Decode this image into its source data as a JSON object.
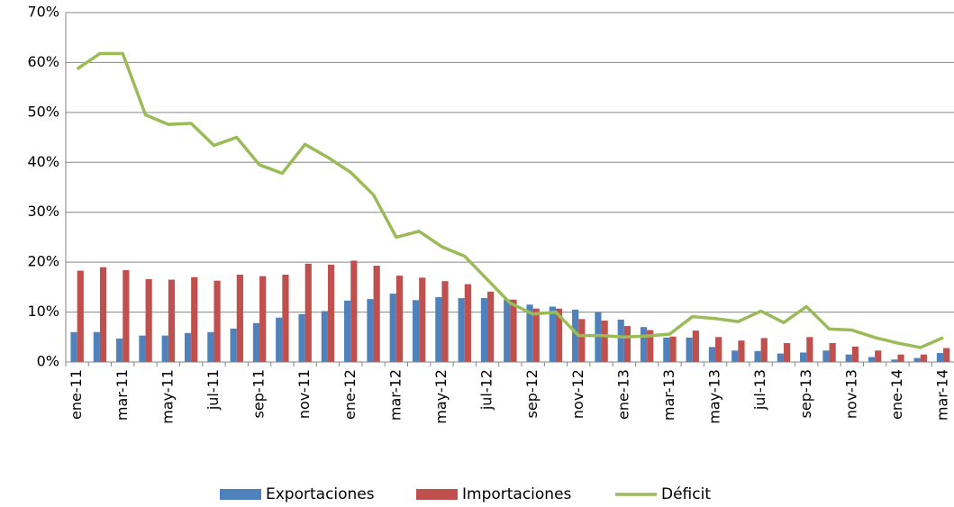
{
  "chart_data": {
    "type": "bar",
    "categories": [
      "ene-11",
      null,
      "mar-11",
      null,
      "may-11",
      null,
      "jul-11",
      null,
      "sep-11",
      null,
      "nov-11",
      null,
      "ene-12",
      null,
      "mar-12",
      null,
      "may-12",
      null,
      "jul-12",
      null,
      "sep-12",
      null,
      "nov-12",
      null,
      "ene-13",
      null,
      "mar-13",
      null,
      "may-13",
      null,
      "jul-13",
      null,
      "sep-13",
      null,
      "nov-13",
      null,
      "ene-14",
      null,
      "mar-14"
    ],
    "series": [
      {
        "name": "Exportaciones",
        "type": "bar",
        "color": "#4f81bd",
        "values": [
          6,
          6,
          4.7,
          5.3,
          5.3,
          5.8,
          6,
          6.7,
          7.8,
          8.9,
          9.6,
          10.2,
          12.3,
          12.6,
          13.7,
          12.4,
          13,
          12.8,
          12.8,
          12.5,
          11.5,
          11.1,
          10.5,
          10,
          8.5,
          7,
          4.9,
          4.9,
          3,
          2.3,
          2.2,
          1.7,
          1.9,
          2.3,
          1.5,
          1,
          0.5,
          0.8,
          1.8
        ]
      },
      {
        "name": "Importaciones",
        "type": "bar",
        "color": "#c0504d",
        "values": [
          18.3,
          19,
          18.4,
          16.6,
          16.5,
          17,
          16.3,
          17.5,
          17.2,
          17.5,
          19.7,
          19.5,
          20.3,
          19.3,
          17.3,
          16.9,
          16.2,
          15.6,
          14.1,
          12.5,
          10.7,
          10.7,
          8.6,
          8.3,
          7.2,
          6.4,
          5.1,
          6.3,
          5,
          4.3,
          4.8,
          3.8,
          5,
          3.8,
          3.1,
          2.3,
          1.5,
          1.5,
          2.8
        ]
      },
      {
        "name": "Déficit",
        "type": "line",
        "color": "#9bbb59",
        "values": [
          58.7,
          61.8,
          61.8,
          49.5,
          47.6,
          47.8,
          43.4,
          45,
          39.5,
          37.8,
          43.6,
          41,
          38,
          33.5,
          25,
          26.2,
          23.1,
          21.2,
          16.5,
          11.8,
          9.6,
          10,
          5.3,
          5.3,
          5,
          5.2,
          5.6,
          9.1,
          8.7,
          8.1,
          10.2,
          7.9,
          11.1,
          6.6,
          6.4,
          4.9,
          3.8,
          2.9,
          4.9
        ]
      }
    ],
    "ylim": [
      0,
      70
    ],
    "yticks": [
      {
        "value": 0,
        "label": "0%"
      },
      {
        "value": 10,
        "label": "10%"
      },
      {
        "value": 20,
        "label": "20%"
      },
      {
        "value": 30,
        "label": "30%"
      },
      {
        "value": 40,
        "label": "40%"
      },
      {
        "value": 50,
        "label": "50%"
      },
      {
        "value": 60,
        "label": "60%"
      },
      {
        "value": 70,
        "label": "70%"
      }
    ],
    "grid": true,
    "legend": "bottom"
  }
}
